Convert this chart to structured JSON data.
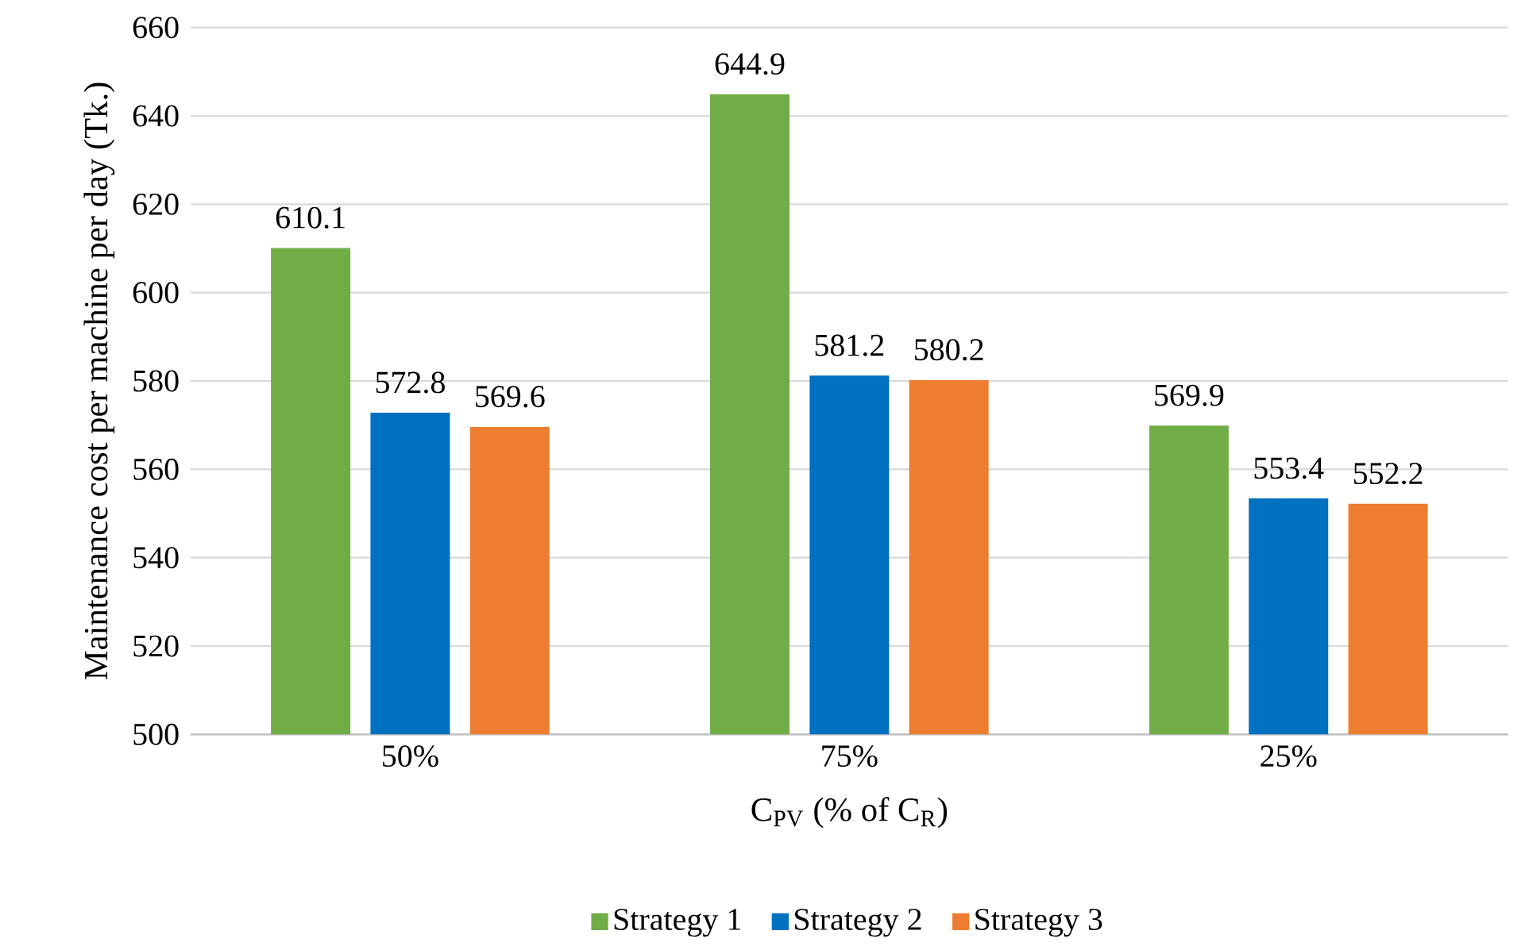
{
  "chart_data": {
    "type": "bar",
    "xlabel": "C$_{PV}$ (% of C$_{R}$)",
    "ylabel": "Maintenance cost per machine per day (Tk.)",
    "categories": [
      "50%",
      "75%",
      "25%"
    ],
    "series": [
      {
        "name": "Strategy 1",
        "color": "#70ad47",
        "values": [
          610.1,
          644.9,
          569.9
        ]
      },
      {
        "name": "Strategy 2",
        "color": "#0070c0",
        "values": [
          572.8,
          581.2,
          553.4
        ]
      },
      {
        "name": "Strategy 3",
        "color": "#ed7d31",
        "values": [
          569.6,
          580.2,
          552.2
        ]
      }
    ],
    "ylim": [
      500,
      660
    ],
    "yticks": [
      500,
      520,
      540,
      560,
      580,
      600,
      620,
      640,
      660
    ],
    "grid": "y",
    "legend": "bottom",
    "data_labels": true
  }
}
